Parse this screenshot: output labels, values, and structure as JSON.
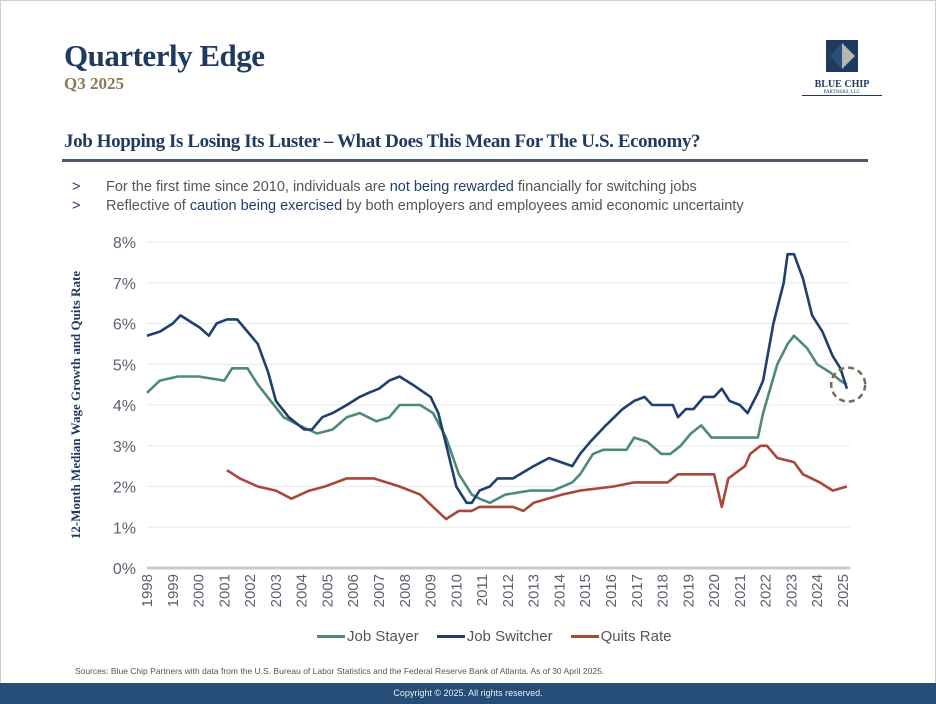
{
  "header": {
    "title": "Quarterly Edge",
    "subtitle": "Q3 2025",
    "logo_name": "BLUE CHIP",
    "logo_sub": "PARTNERS, LLC"
  },
  "section_title": "Job Hopping Is Losing Its Luster – What Does This Mean For The U.S. Economy?",
  "bullets": [
    {
      "marker": ">",
      "pre": "For the first time since 2010, individuals are ",
      "highlight": "not being rewarded",
      "post": " financially for switching jobs"
    },
    {
      "marker": ">",
      "pre": "Reflective of ",
      "highlight": "caution being exercised",
      "post": " by both employers and employees amid economic uncertainty"
    }
  ],
  "source": "Sources: Blue Chip Partners with data from the U.S. Bureau of Labor Statistics and the Federal Reserve Bank of Atlanta. As of 30 April 2025.",
  "footer": "Copyright © 2025. All rights reserved.",
  "colors": {
    "navy": "#1f3f6e",
    "stayer": "#4f8a78",
    "quits": "#a8483a",
    "highlight_circle": "#7a6a50"
  },
  "chart_data": {
    "type": "line",
    "ylabel": "12-Month Median Wage Growth and Quits Rate",
    "xlim": [
      1998,
      2025.3
    ],
    "ylim": [
      0,
      8
    ],
    "yticks": [
      "0%",
      "1%",
      "2%",
      "3%",
      "4%",
      "5%",
      "6%",
      "7%",
      "8%"
    ],
    "xticks": [
      "1998",
      "1999",
      "2000",
      "2001",
      "2002",
      "2003",
      "2004",
      "2005",
      "2006",
      "2007",
      "2008",
      "2009",
      "2010",
      "2011",
      "2012",
      "2013",
      "2014",
      "2015",
      "2016",
      "2017",
      "2018",
      "2019",
      "2020",
      "2021",
      "2022",
      "2023",
      "2024",
      "2025"
    ],
    "grid": true,
    "legend": "bottom",
    "annotation": "dashed circle around latest values (2025)",
    "series": [
      {
        "name": "Job Stayer",
        "color": "#4f8a78",
        "x": [
          1998.0,
          1998.5,
          1999.2,
          2000.0,
          2001.0,
          2001.3,
          2001.9,
          2002.3,
          2002.8,
          2003.3,
          2003.9,
          2004.6,
          2005.2,
          2005.75,
          2006.25,
          2006.9,
          2007.4,
          2007.8,
          2008.6,
          2009.1,
          2009.6,
          2010.1,
          2010.6,
          2010.9,
          2011.3,
          2011.9,
          2012.85,
          2013.75,
          2014.5,
          2014.8,
          2015.3,
          2015.7,
          2016.6,
          2016.9,
          2017.4,
          2017.95,
          2018.3,
          2018.7,
          2019.1,
          2019.5,
          2019.9,
          2020.8,
          2021.7,
          2021.9,
          2022.45,
          2022.85,
          2023.1,
          2023.6,
          2024.0,
          2024.5,
          2024.9,
          2025.15
        ],
        "y": [
          4.3,
          4.6,
          4.7,
          4.7,
          4.6,
          4.9,
          4.9,
          4.5,
          4.1,
          3.7,
          3.5,
          3.3,
          3.4,
          3.7,
          3.8,
          3.6,
          3.7,
          4.0,
          4.0,
          3.8,
          3.2,
          2.3,
          1.8,
          1.7,
          1.6,
          1.8,
          1.9,
          1.9,
          2.1,
          2.3,
          2.8,
          2.9,
          2.9,
          3.2,
          3.1,
          2.8,
          2.8,
          3.0,
          3.3,
          3.5,
          3.2,
          3.2,
          3.2,
          3.8,
          5.0,
          5.5,
          5.7,
          5.4,
          5.0,
          4.8,
          4.6,
          4.5
        ]
      },
      {
        "name": "Job Switcher",
        "color": "#1f3f6e",
        "x": [
          1998.0,
          1998.5,
          1999.0,
          1999.3,
          2000.05,
          2000.4,
          2000.7,
          2001.1,
          2001.5,
          2001.9,
          2002.3,
          2002.7,
          2003.0,
          2003.5,
          2004.1,
          2004.4,
          2004.8,
          2005.2,
          2005.75,
          2006.25,
          2006.6,
          2007.0,
          2007.4,
          2007.8,
          2008.3,
          2009.0,
          2009.3,
          2009.5,
          2010.0,
          2010.4,
          2010.6,
          2010.9,
          2011.3,
          2011.6,
          2012.2,
          2013.0,
          2013.6,
          2014.5,
          2014.8,
          2015.2,
          2015.8,
          2016.45,
          2016.9,
          2017.3,
          2017.6,
          2018.4,
          2018.6,
          2018.9,
          2019.2,
          2019.6,
          2020.0,
          2020.3,
          2020.6,
          2021.0,
          2021.3,
          2021.7,
          2021.9,
          2022.3,
          2022.7,
          2022.85,
          2023.1,
          2023.45,
          2023.8,
          2024.2,
          2024.6,
          2024.9,
          2025.15
        ],
        "y": [
          5.7,
          5.8,
          6.0,
          6.2,
          5.9,
          5.7,
          6.0,
          6.1,
          6.1,
          5.8,
          5.5,
          4.8,
          4.1,
          3.7,
          3.4,
          3.4,
          3.7,
          3.8,
          4.0,
          4.2,
          4.3,
          4.4,
          4.6,
          4.7,
          4.5,
          4.2,
          3.8,
          3.3,
          2.0,
          1.6,
          1.6,
          1.9,
          2.0,
          2.2,
          2.2,
          2.5,
          2.7,
          2.5,
          2.8,
          3.1,
          3.5,
          3.9,
          4.1,
          4.2,
          4.0,
          4.0,
          3.7,
          3.9,
          3.9,
          4.2,
          4.2,
          4.4,
          4.1,
          4.0,
          3.8,
          4.3,
          4.6,
          6.0,
          7.0,
          7.7,
          7.7,
          7.1,
          6.2,
          5.8,
          5.2,
          4.9,
          4.4
        ]
      },
      {
        "name": "Quits Rate",
        "color": "#a8483a",
        "x": [
          2001.1,
          2001.6,
          2002.3,
          2003.0,
          2003.6,
          2004.3,
          2004.9,
          2005.75,
          2006.8,
          2007.8,
          2008.6,
          2009.1,
          2009.6,
          2010.1,
          2010.6,
          2010.9,
          2012.2,
          2012.6,
          2013.0,
          2014.1,
          2014.8,
          2016.1,
          2016.9,
          2018.2,
          2018.6,
          2020.0,
          2020.3,
          2020.55,
          2021.2,
          2021.4,
          2021.8,
          2022.05,
          2022.45,
          2023.1,
          2023.45,
          2024.1,
          2024.6,
          2025.15
        ],
        "y": [
          2.4,
          2.2,
          2.0,
          1.9,
          1.7,
          1.9,
          2.0,
          2.2,
          2.2,
          2.0,
          1.8,
          1.5,
          1.2,
          1.4,
          1.4,
          1.5,
          1.5,
          1.4,
          1.6,
          1.8,
          1.9,
          2.0,
          2.1,
          2.1,
          2.3,
          2.3,
          1.5,
          2.2,
          2.5,
          2.8,
          3.0,
          3.0,
          2.7,
          2.6,
          2.3,
          2.1,
          1.9,
          2.0
        ]
      }
    ]
  }
}
